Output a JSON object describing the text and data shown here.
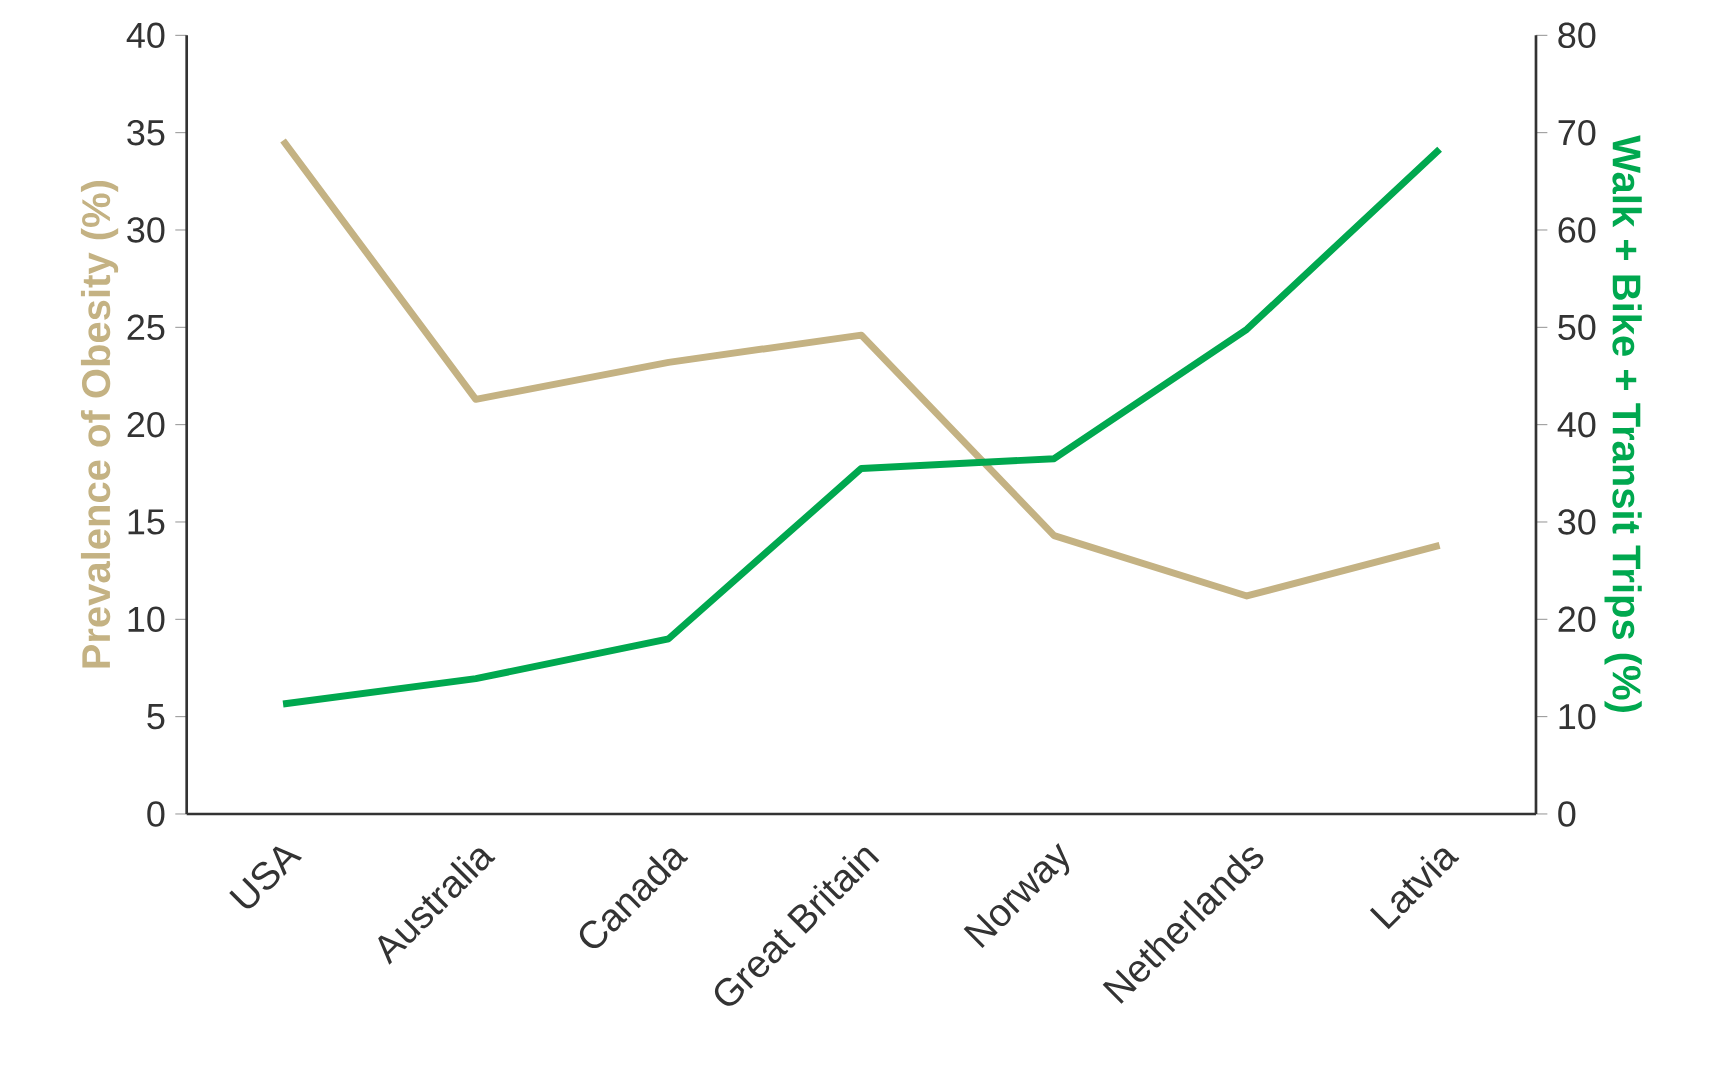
{
  "chart_data": {
    "type": "line",
    "categories": [
      "USA",
      "Australia",
      "Canada",
      "Great Britain",
      "Norway",
      "Netherlands",
      "Latvia"
    ],
    "series": [
      {
        "color": "#c4b283",
        "values": [
          34.6,
          21.3,
          23.2,
          24.6,
          14.3,
          11.2,
          13.8
        ],
        "axis": "y"
      },
      {
        "color": "#00a84f",
        "values": [
          11.3,
          13.9,
          18.0,
          35.5,
          36.5,
          49.8,
          68.3
        ],
        "axis": "y2"
      }
    ],
    "ylabel": "Prevalence of Obesity (%)",
    "y2label": "Walk + Bike + Transit Trips (%)",
    "ylim": [
      0,
      40
    ],
    "yticks": [
      0,
      5,
      10,
      15,
      20,
      25,
      30,
      35,
      40
    ],
    "y2lim": [
      0,
      80
    ],
    "y2ticks": [
      0,
      10,
      20,
      30,
      40,
      50,
      60,
      70,
      80
    ],
    "marker": "none",
    "line_style": "solid"
  }
}
